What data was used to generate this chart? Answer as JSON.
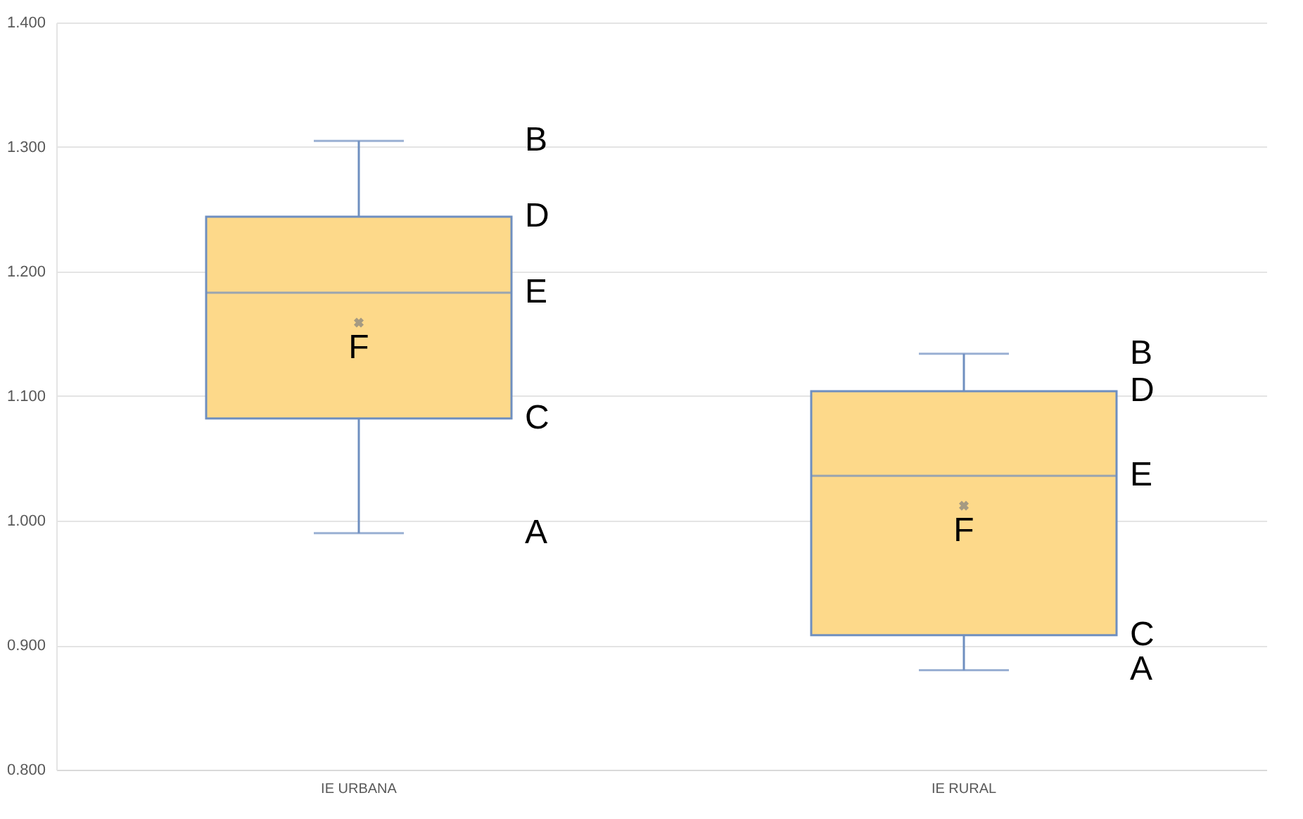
{
  "chart_data": {
    "type": "box",
    "categories": [
      "IE URBANA",
      "IE RURAL"
    ],
    "boxes": [
      {
        "low": 0.99,
        "q1": 1.082,
        "median": 1.183,
        "q3": 1.244,
        "high": 1.305,
        "mean": 1.159
      },
      {
        "low": 0.88,
        "q1": 0.908,
        "median": 1.036,
        "q3": 1.104,
        "high": 1.134,
        "mean": 1.012
      }
    ],
    "color": "#fdd98a",
    "ylim": [
      0.8,
      1.4
    ],
    "yticks": [
      {
        "value": 0.8,
        "label": "0.800"
      },
      {
        "value": 0.9,
        "label": "0.900"
      },
      {
        "value": 1.0,
        "label": "1.000"
      },
      {
        "value": 1.1,
        "label": "1.100"
      },
      {
        "value": 1.2,
        "label": "1.200"
      },
      {
        "value": 1.3,
        "label": "1.300"
      },
      {
        "value": 1.4,
        "label": "1.400"
      }
    ],
    "grid": "y",
    "marker": "cross",
    "annotations": [
      "B",
      "D",
      "E",
      "C",
      "A",
      "F",
      "B",
      "D",
      "E",
      "C",
      "A",
      "F"
    ]
  }
}
